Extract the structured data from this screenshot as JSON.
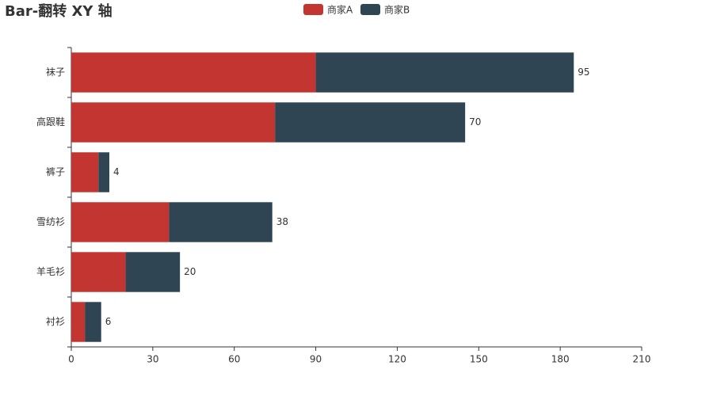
{
  "chart_data": {
    "type": "bar",
    "orientation": "horizontal",
    "stacked": true,
    "title": "Bar-翻转 XY 轴",
    "categories": [
      "衬衫",
      "羊毛衫",
      "雪纺衫",
      "裤子",
      "高跟鞋",
      "袜子"
    ],
    "series": [
      {
        "name": "商家A",
        "color": "#c23531",
        "values": [
          5,
          20,
          36,
          10,
          75,
          90
        ]
      },
      {
        "name": "商家B",
        "color": "#2f4554",
        "values": [
          6,
          20,
          38,
          4,
          70,
          95
        ],
        "show_labels": true
      }
    ],
    "xlim": [
      0,
      210
    ],
    "xticks": [
      0,
      30,
      60,
      90,
      120,
      150,
      180,
      210
    ],
    "grid": false
  }
}
